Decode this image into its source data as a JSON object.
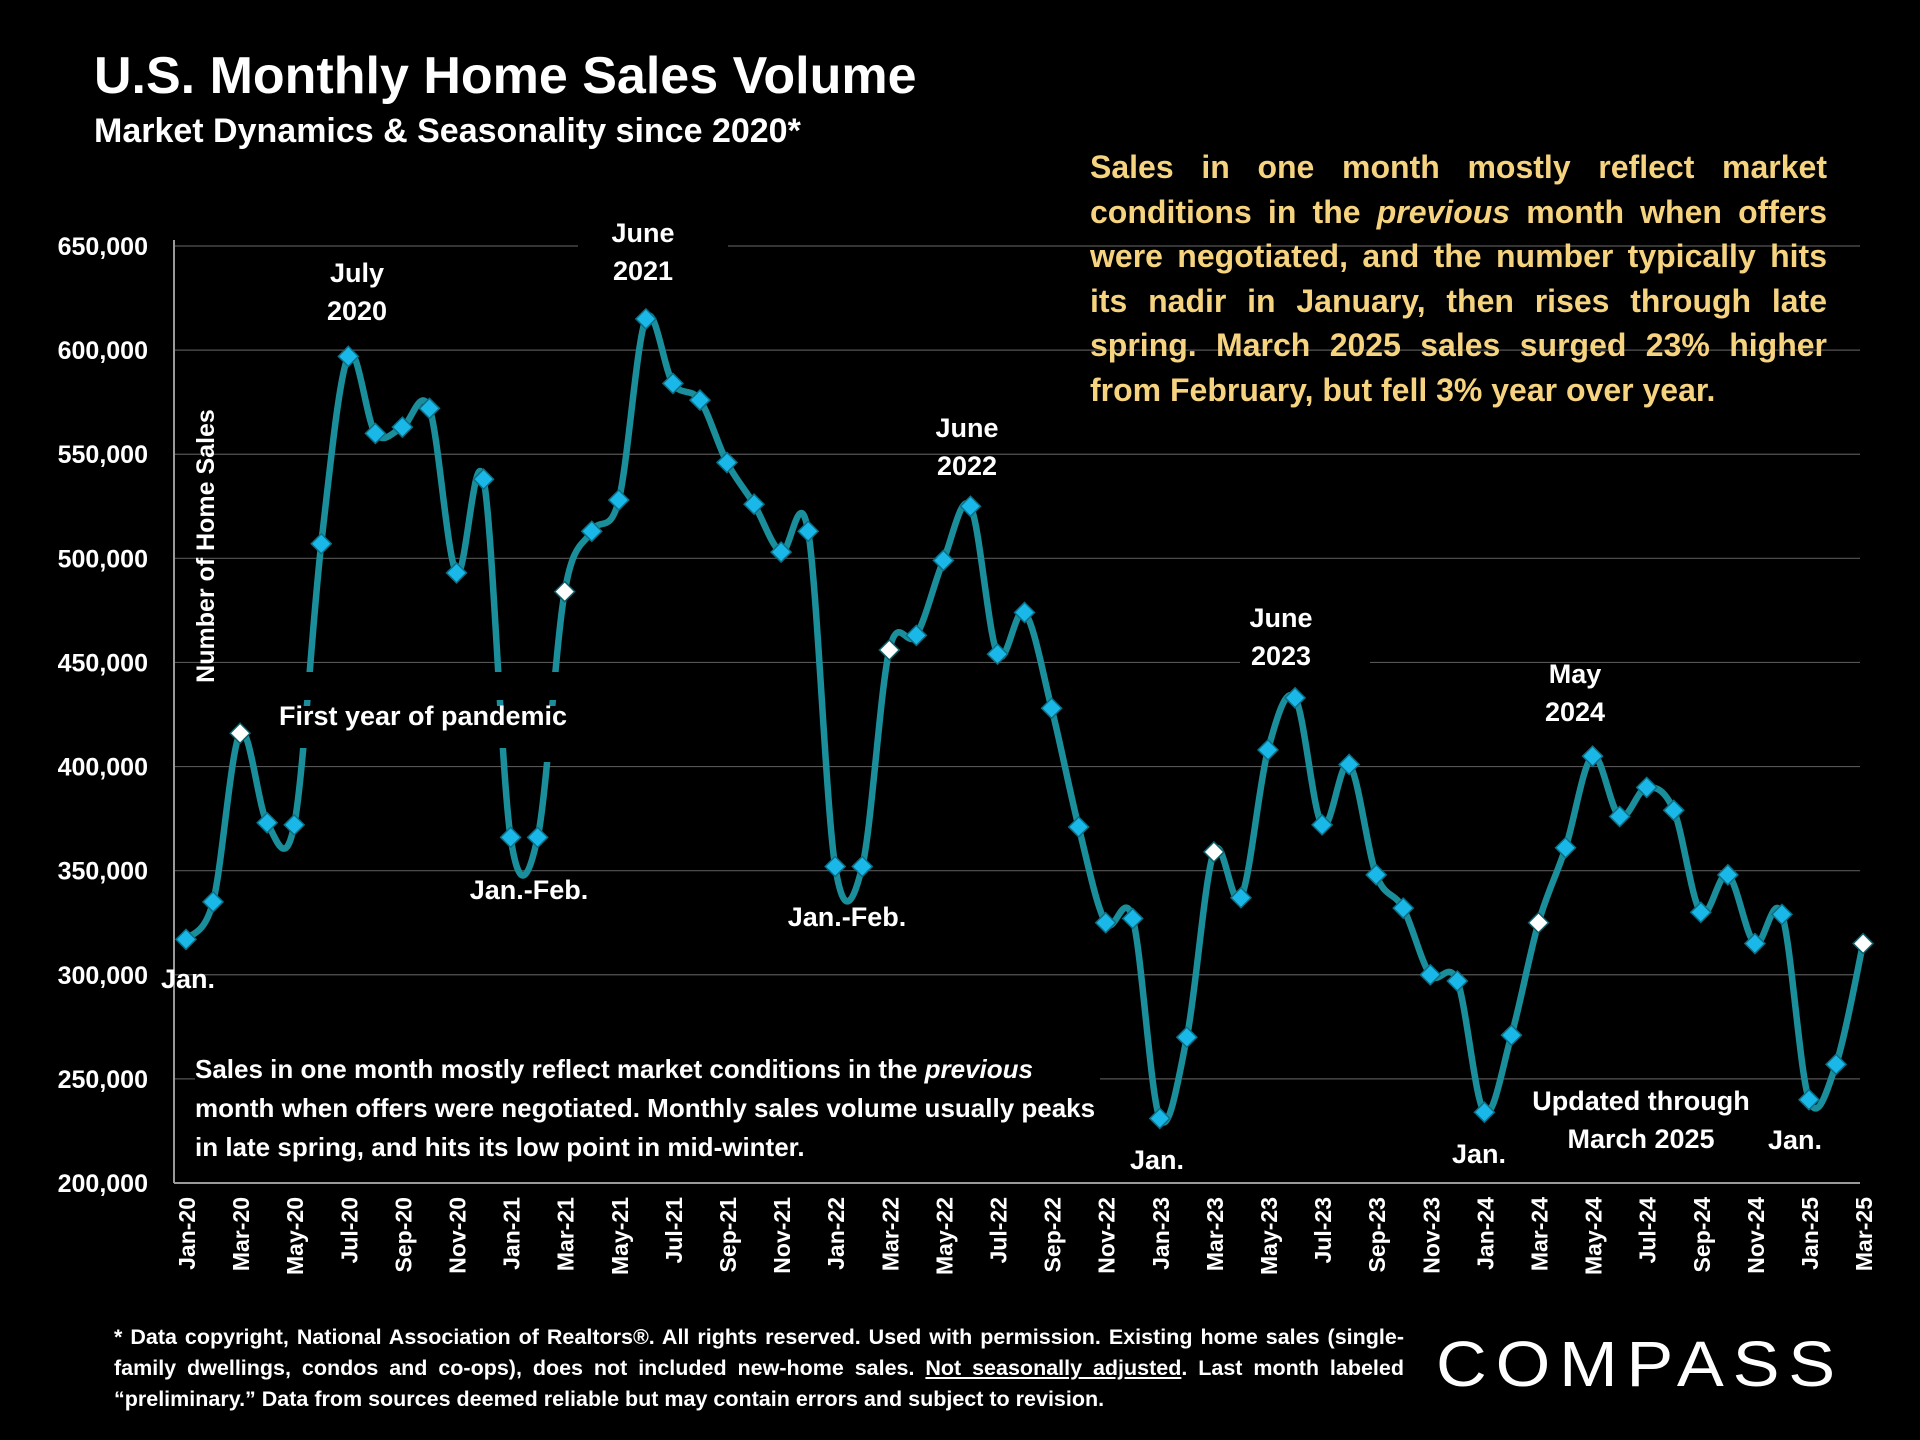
{
  "title": "U.S. Monthly Home Sales Volume",
  "subtitle": "Market Dynamics & Seasonality since 2020*",
  "insight": {
    "before": "Sales in one month mostly reflect market conditions in the ",
    "emphasis": "previous",
    "after": " month when offers were negotiated, and the number typically hits its nadir in January, then rises through late spring. March 2025 sales surged 23% higher from February, but fell 3% year over year."
  },
  "note": {
    "before": "Sales in one month mostly reflect market conditions in the ",
    "emphasis": "previous",
    "after": " month when offers were negotiated. Monthly sales volume usually peaks in late spring, and hits its low point in mid-winter."
  },
  "footnote": {
    "before": "* Data copyright, National Association of Realtors®. All rights reserved. Used with permission. Existing home sales (single-family dwellings, condos and co-ops), does not included new-home sales. ",
    "underlined": "Not seasonally adjusted",
    "after": ". Last month labeled “preliminary.” Data from sources deemed reliable but may contain errors and subject to revision."
  },
  "logo_text": "COMPASS",
  "colors": {
    "line": "#1a8f9b",
    "marker": "#1ab8e8",
    "highlight_marker": "#ffffff",
    "insight_text": "#f6d37e",
    "grid": "#555555"
  },
  "chart_data": {
    "type": "line",
    "ylabel": "Number of Home Sales",
    "ylim": [
      200000,
      650000
    ],
    "yticks": [
      200000,
      250000,
      300000,
      350000,
      400000,
      450000,
      500000,
      550000,
      600000,
      650000
    ],
    "ytick_labels": [
      "200,000",
      "250,000",
      "300,000",
      "350,000",
      "400,000",
      "450,000",
      "500,000",
      "550,000",
      "600,000",
      "650,000"
    ],
    "grid": true,
    "x": [
      "Jan-20",
      "Feb-20",
      "Mar-20",
      "Apr-20",
      "May-20",
      "Jun-20",
      "Jul-20",
      "Aug-20",
      "Sep-20",
      "Oct-20",
      "Nov-20",
      "Dec-20",
      "Jan-21",
      "Feb-21",
      "Mar-21",
      "Apr-21",
      "May-21",
      "Jun-21",
      "Jul-21",
      "Aug-21",
      "Sep-21",
      "Oct-21",
      "Nov-21",
      "Dec-21",
      "Jan-22",
      "Feb-22",
      "Mar-22",
      "Apr-22",
      "May-22",
      "Jun-22",
      "Jul-22",
      "Aug-22",
      "Sep-22",
      "Oct-22",
      "Nov-22",
      "Dec-22",
      "Jan-23",
      "Feb-23",
      "Mar-23",
      "Apr-23",
      "May-23",
      "Jun-23",
      "Jul-23",
      "Aug-23",
      "Sep-23",
      "Oct-23",
      "Nov-23",
      "Dec-23",
      "Jan-24",
      "Feb-24",
      "Mar-24",
      "Apr-24",
      "May-24",
      "Jun-24",
      "Jul-24",
      "Aug-24",
      "Sep-24",
      "Oct-24",
      "Nov-24",
      "Dec-24",
      "Jan-25",
      "Feb-25",
      "Mar-25"
    ],
    "xtick_labels": [
      "Jan-20",
      "Mar-20",
      "May-20",
      "Jul-20",
      "Sep-20",
      "Nov-20",
      "Jan-21",
      "Mar-21",
      "May-21",
      "Jul-21",
      "Sep-21",
      "Nov-21",
      "Jan-22",
      "Mar-22",
      "May-22",
      "Jul-22",
      "Sep-22",
      "Nov-22",
      "Jan-23",
      "Mar-23",
      "May-23",
      "Jul-23",
      "Sep-23",
      "Nov-23",
      "Jan-24",
      "Mar-24",
      "May-24",
      "Jul-24",
      "Sep-24",
      "Nov-24",
      "Jan-25",
      "Mar-25"
    ],
    "series": [
      {
        "values": [
          317000,
          335000,
          416000,
          373000,
          372000,
          507000,
          597000,
          560000,
          563000,
          572000,
          493000,
          538000,
          366000,
          366000,
          484000,
          513000,
          528000,
          615000,
          584000,
          576000,
          546000,
          526000,
          503000,
          513000,
          352000,
          352000,
          456000,
          463000,
          499000,
          525000,
          454000,
          474000,
          428000,
          371000,
          325000,
          327000,
          231000,
          270000,
          359000,
          337000,
          408000,
          433000,
          372000,
          401000,
          348000,
          332000,
          300000,
          297000,
          234000,
          271000,
          325000,
          361000,
          405000,
          376000,
          390000,
          379000,
          330000,
          348000,
          315000,
          329000,
          240000,
          257000,
          315000
        ],
        "highlight": [
          "Mar-20",
          "Mar-21",
          "Mar-22",
          "Mar-23",
          "Mar-24",
          "Mar-25"
        ]
      }
    ],
    "annotations": [
      {
        "lines": [
          "July",
          "2020"
        ],
        "at": "Jul-20"
      },
      {
        "lines": [
          "June",
          "2021"
        ],
        "at": "Jun-21"
      },
      {
        "lines": [
          "June",
          "2022"
        ],
        "at": "Jun-22"
      },
      {
        "lines": [
          "June",
          "2023"
        ],
        "at": "Jun-23"
      },
      {
        "lines": [
          "May",
          "2024"
        ],
        "at": "May-24"
      },
      {
        "lines": [
          "Jan."
        ],
        "at": "Jan-20"
      },
      {
        "lines": [
          "First year of pandemic"
        ]
      },
      {
        "lines": [
          "Jan.-Feb."
        ],
        "at": "Jan-21"
      },
      {
        "lines": [
          "Jan.-Feb."
        ],
        "at": "Jan-22"
      },
      {
        "lines": [
          "Jan."
        ],
        "at": "Jan-23"
      },
      {
        "lines": [
          "Jan."
        ],
        "at": "Jan-24"
      },
      {
        "lines": [
          "Updated through",
          "March 2025"
        ]
      },
      {
        "lines": [
          "Jan."
        ],
        "at": "Jan-25"
      }
    ]
  }
}
